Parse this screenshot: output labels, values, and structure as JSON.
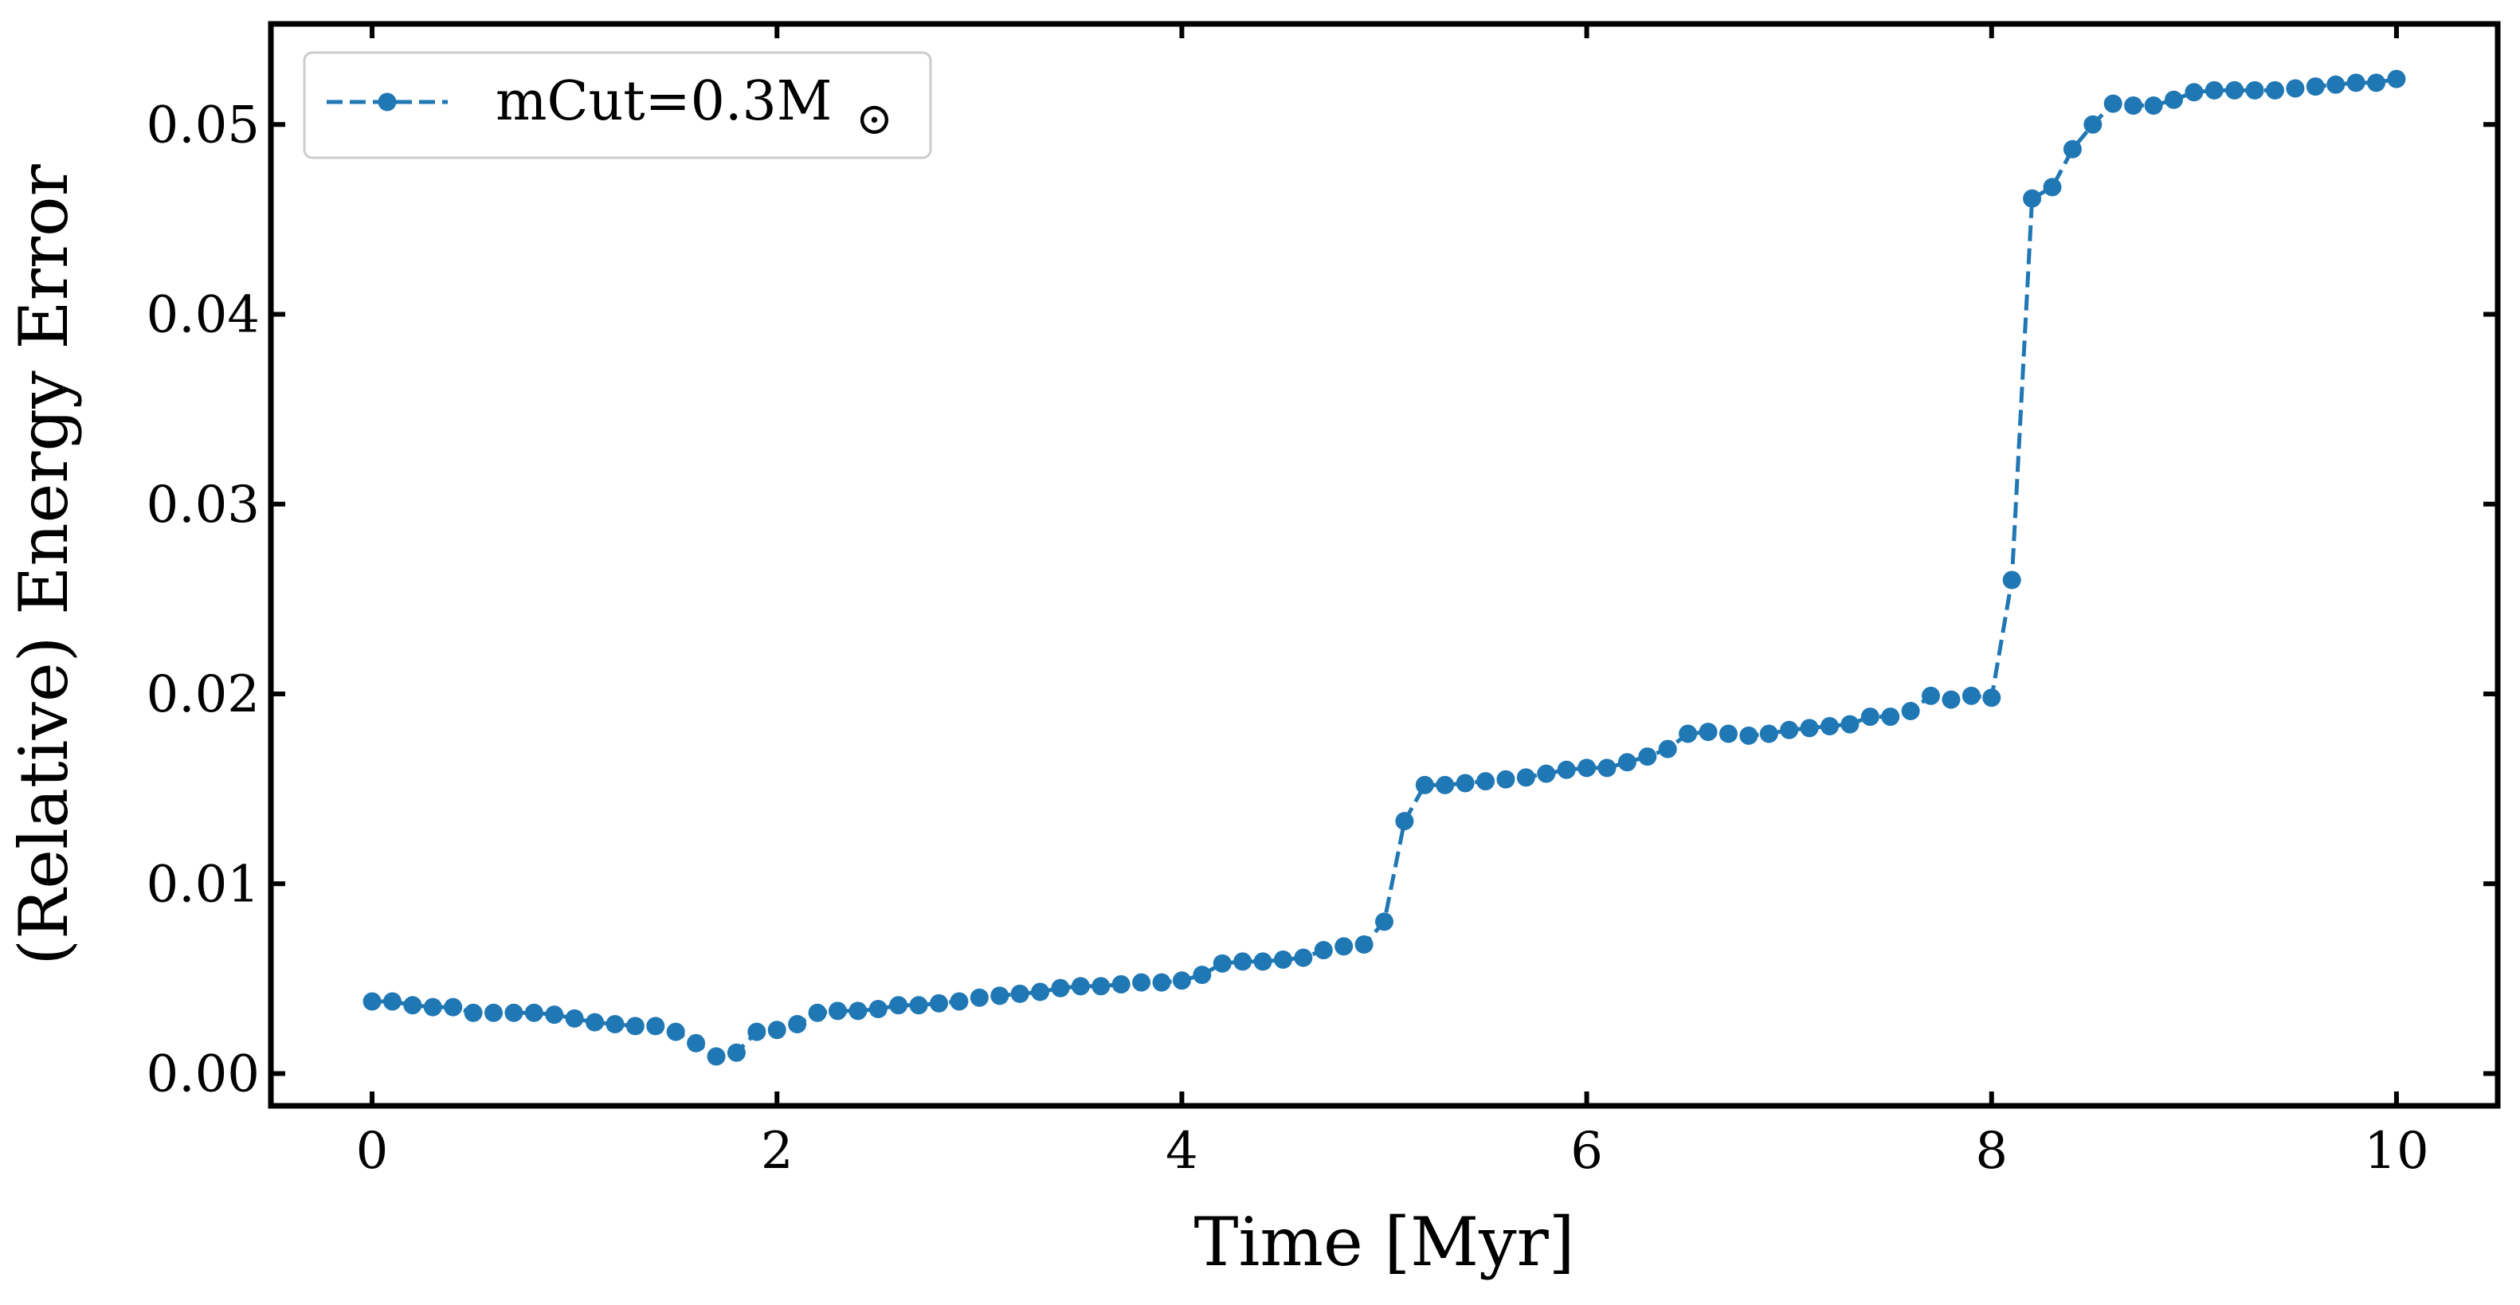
{
  "chart_data": {
    "type": "line",
    "title": "",
    "xlabel": "Time [Myr]",
    "ylabel": "(Relative) Energy Error",
    "xlim": [
      -0.5,
      10.5
    ],
    "ylim": [
      -0.0017,
      0.0553
    ],
    "xticks": [
      0,
      2,
      4,
      6,
      8,
      10
    ],
    "xtick_labels": [
      "0",
      "2",
      "4",
      "6",
      "8",
      "10"
    ],
    "yticks": [
      0.0,
      0.01,
      0.02,
      0.03,
      0.04,
      0.05
    ],
    "ytick_labels": [
      "0.00",
      "0.01",
      "0.02",
      "0.03",
      "0.04",
      "0.05"
    ],
    "grid": false,
    "ticks_direction": "in",
    "legend_position": "top-left",
    "series": [
      {
        "name": "mCut=0.3M",
        "name_symbol": "⊙",
        "color": "#1f77b4",
        "line_style": "dashed",
        "marker": "circle",
        "x": [
          0.0,
          0.1,
          0.2,
          0.3,
          0.4,
          0.5,
          0.6,
          0.7,
          0.8,
          0.9,
          1.0,
          1.1,
          1.2,
          1.3,
          1.4,
          1.5,
          1.6,
          1.7,
          1.8,
          1.9,
          2.0,
          2.1,
          2.2,
          2.3,
          2.4,
          2.5,
          2.6,
          2.7,
          2.8,
          2.9,
          3.0,
          3.1,
          3.2,
          3.3,
          3.4,
          3.5,
          3.6,
          3.7,
          3.8,
          3.9,
          4.0,
          4.1,
          4.2,
          4.3,
          4.4,
          4.5,
          4.6,
          4.7,
          4.8,
          4.9,
          5.0,
          5.1,
          5.2,
          5.3,
          5.4,
          5.5,
          5.6,
          5.7,
          5.8,
          5.9,
          6.0,
          6.1,
          6.2,
          6.3,
          6.4,
          6.5,
          6.6,
          6.7,
          6.8,
          6.9,
          7.0,
          7.1,
          7.2,
          7.3,
          7.4,
          7.5,
          7.6,
          7.7,
          7.8,
          7.9,
          8.0,
          8.1,
          8.2,
          8.3,
          8.4,
          8.5,
          8.6,
          8.7,
          8.8,
          8.9,
          9.0,
          9.1,
          9.2,
          9.3,
          9.4,
          9.5,
          9.6,
          9.7,
          9.8,
          9.9,
          10.0
        ],
        "y": [
          0.0038,
          0.0038,
          0.0036,
          0.0035,
          0.0035,
          0.0032,
          0.0032,
          0.0032,
          0.0032,
          0.0031,
          0.0029,
          0.0027,
          0.0026,
          0.0025,
          0.0025,
          0.0022,
          0.0016,
          0.0009,
          0.0011,
          0.0022,
          0.0023,
          0.0026,
          0.0032,
          0.0033,
          0.0033,
          0.0034,
          0.0036,
          0.0036,
          0.0037,
          0.0038,
          0.004,
          0.0041,
          0.0042,
          0.0043,
          0.0045,
          0.0046,
          0.0046,
          0.0047,
          0.0048,
          0.0048,
          0.0049,
          0.0052,
          0.0058,
          0.0059,
          0.0059,
          0.006,
          0.0061,
          0.0065,
          0.0067,
          0.0068,
          0.008,
          0.0133,
          0.0152,
          0.0152,
          0.0153,
          0.0154,
          0.0155,
          0.0156,
          0.0158,
          0.016,
          0.0161,
          0.0161,
          0.0164,
          0.0167,
          0.0171,
          0.0179,
          0.018,
          0.0179,
          0.0178,
          0.0179,
          0.0181,
          0.0182,
          0.0183,
          0.0184,
          0.0188,
          0.0188,
          0.0191,
          0.0199,
          0.0197,
          0.0199,
          0.0198,
          0.026,
          0.0461,
          0.0467,
          0.0487,
          0.05,
          0.0511,
          0.051,
          0.051,
          0.0513,
          0.0517,
          0.0518,
          0.0518,
          0.0518,
          0.0518,
          0.0519,
          0.052,
          0.0521,
          0.0522,
          0.0522,
          0.0524
        ]
      }
    ]
  }
}
